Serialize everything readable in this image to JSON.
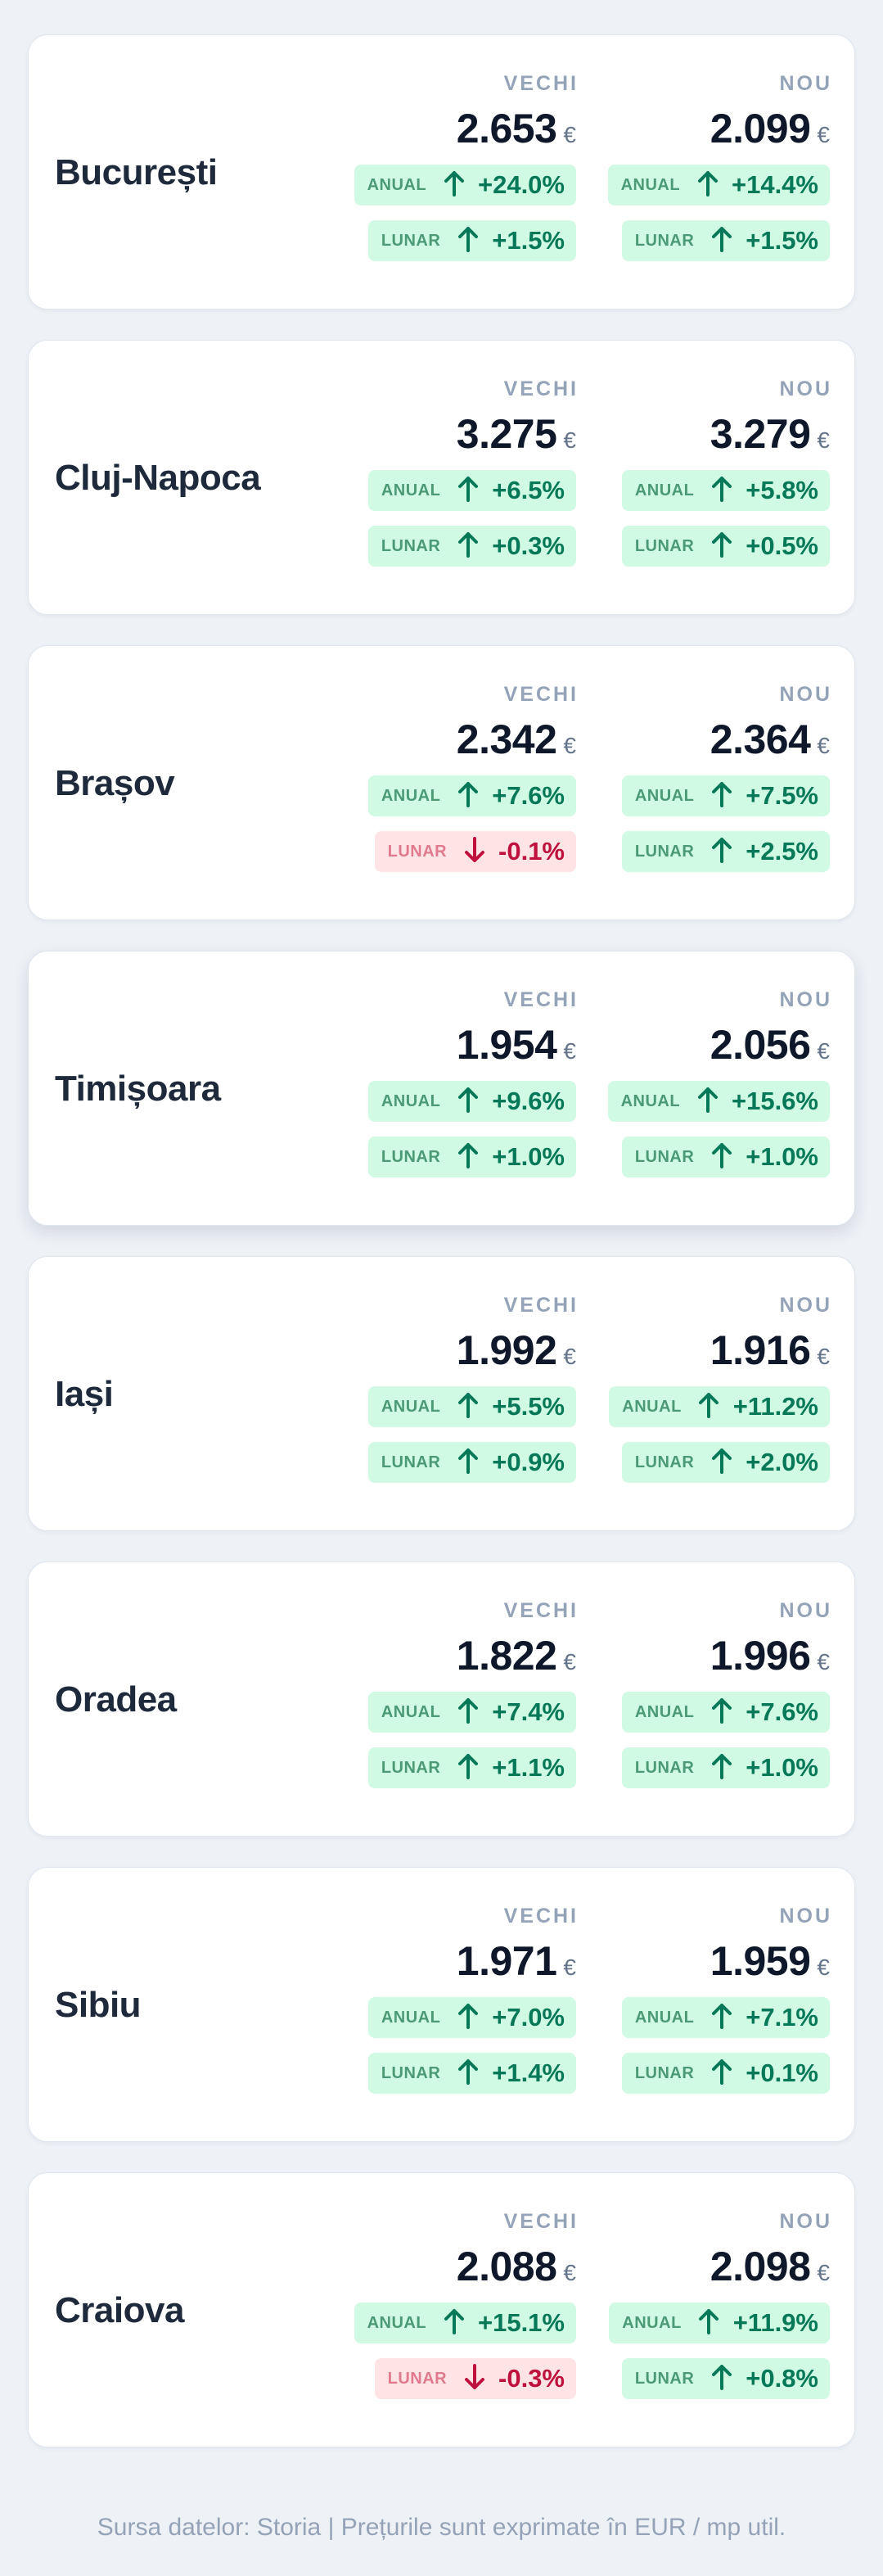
{
  "colors": {
    "up_bg": "#d1fae5",
    "up_text": "#047857",
    "down_bg": "#ffe4e6",
    "down_text": "#be123c",
    "page_bg": "#eef2f7"
  },
  "labels": {
    "old": "VECHI",
    "new": "NOU",
    "annual": "ANUAL",
    "monthly": "LUNAR",
    "currency": "€"
  },
  "icons": {
    "up": "arrow-up-icon",
    "down": "arrow-down-icon"
  },
  "cities": [
    {
      "name": "București",
      "old": {
        "price": "2.653",
        "annual": "+24.0%",
        "annual_dir": "up",
        "monthly": "+1.5%",
        "monthly_dir": "up"
      },
      "new": {
        "price": "2.099",
        "annual": "+14.4%",
        "annual_dir": "up",
        "monthly": "+1.5%",
        "monthly_dir": "up"
      }
    },
    {
      "name": "Cluj-Napoca",
      "old": {
        "price": "3.275",
        "annual": "+6.5%",
        "annual_dir": "up",
        "monthly": "+0.3%",
        "monthly_dir": "up"
      },
      "new": {
        "price": "3.279",
        "annual": "+5.8%",
        "annual_dir": "up",
        "monthly": "+0.5%",
        "monthly_dir": "up"
      }
    },
    {
      "name": "Brașov",
      "old": {
        "price": "2.342",
        "annual": "+7.6%",
        "annual_dir": "up",
        "monthly": "-0.1%",
        "monthly_dir": "down"
      },
      "new": {
        "price": "2.364",
        "annual": "+7.5%",
        "annual_dir": "up",
        "monthly": "+2.5%",
        "monthly_dir": "up"
      }
    },
    {
      "name": "Timișoara",
      "highlight": true,
      "old": {
        "price": "1.954",
        "annual": "+9.6%",
        "annual_dir": "up",
        "monthly": "+1.0%",
        "monthly_dir": "up"
      },
      "new": {
        "price": "2.056",
        "annual": "+15.6%",
        "annual_dir": "up",
        "monthly": "+1.0%",
        "monthly_dir": "up"
      }
    },
    {
      "name": "Iași",
      "old": {
        "price": "1.992",
        "annual": "+5.5%",
        "annual_dir": "up",
        "monthly": "+0.9%",
        "monthly_dir": "up"
      },
      "new": {
        "price": "1.916",
        "annual": "+11.2%",
        "annual_dir": "up",
        "monthly": "+2.0%",
        "monthly_dir": "up"
      }
    },
    {
      "name": "Oradea",
      "old": {
        "price": "1.822",
        "annual": "+7.4%",
        "annual_dir": "up",
        "monthly": "+1.1%",
        "monthly_dir": "up"
      },
      "new": {
        "price": "1.996",
        "annual": "+7.6%",
        "annual_dir": "up",
        "monthly": "+1.0%",
        "monthly_dir": "up"
      }
    },
    {
      "name": "Sibiu",
      "old": {
        "price": "1.971",
        "annual": "+7.0%",
        "annual_dir": "up",
        "monthly": "+1.4%",
        "monthly_dir": "up"
      },
      "new": {
        "price": "1.959",
        "annual": "+7.1%",
        "annual_dir": "up",
        "monthly": "+0.1%",
        "monthly_dir": "up"
      }
    },
    {
      "name": "Craiova",
      "old": {
        "price": "2.088",
        "annual": "+15.1%",
        "annual_dir": "up",
        "monthly": "-0.3%",
        "monthly_dir": "down"
      },
      "new": {
        "price": "2.098",
        "annual": "+11.9%",
        "annual_dir": "up",
        "monthly": "+0.8%",
        "monthly_dir": "up"
      }
    }
  ],
  "footer": "Sursa datelor: Storia | Prețurile sunt exprimate în EUR / mp util."
}
